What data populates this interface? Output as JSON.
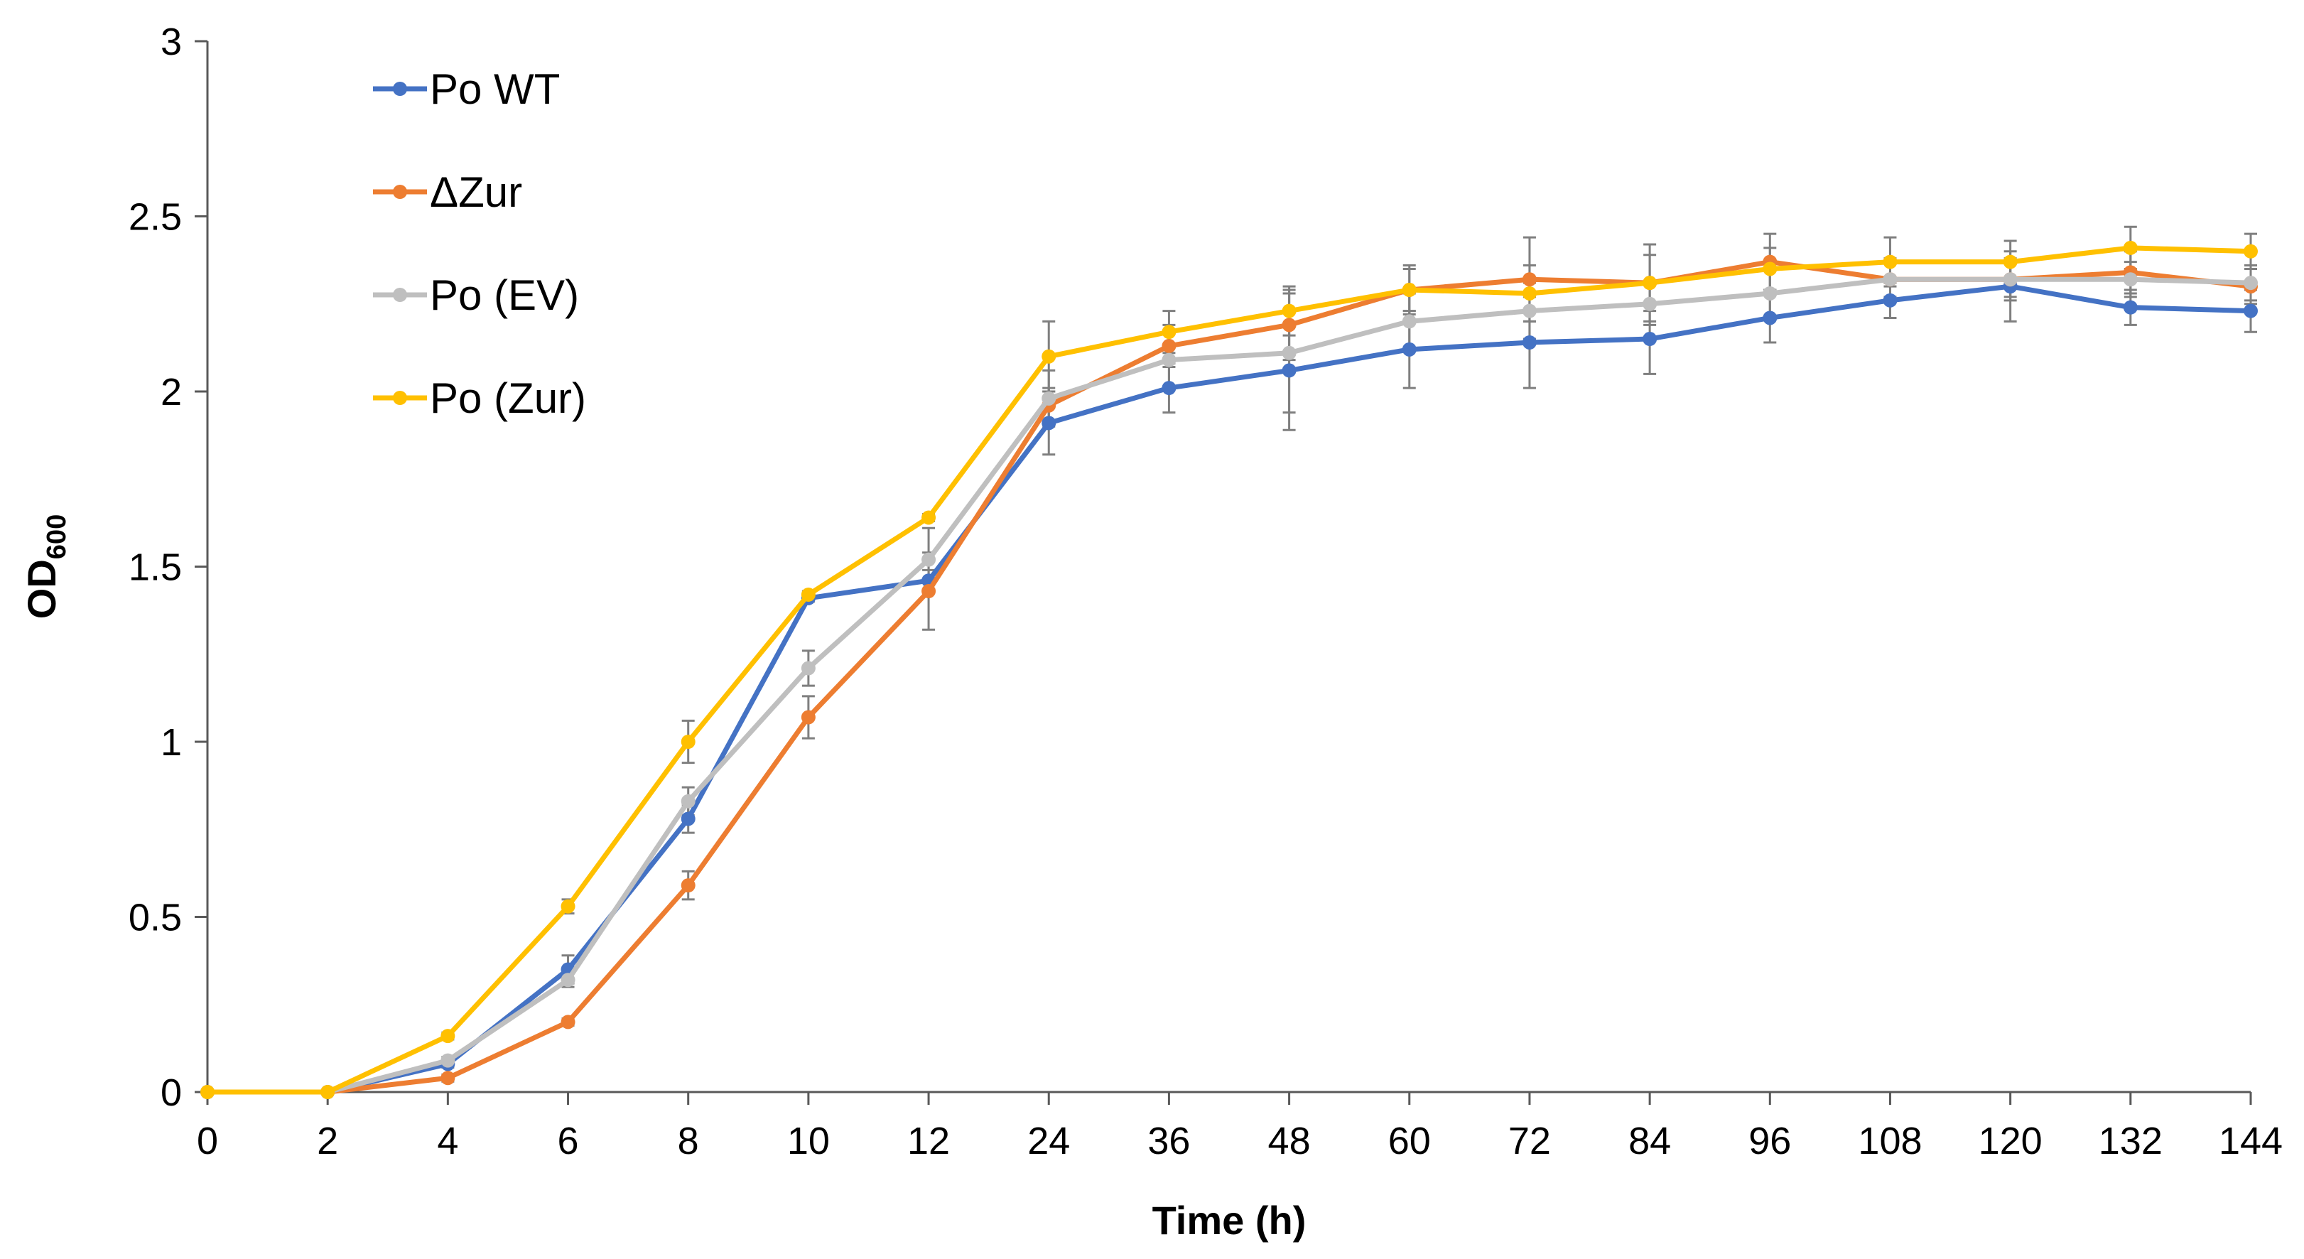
{
  "chart_data": {
    "type": "line",
    "title": "",
    "xlabel": "Time (h)",
    "ylabel": {
      "main": "OD",
      "sub": "600"
    },
    "categories": [
      "0",
      "2",
      "4",
      "6",
      "8",
      "10",
      "12",
      "24",
      "36",
      "48",
      "60",
      "72",
      "84",
      "96",
      "108",
      "120",
      "132",
      "144"
    ],
    "ylim": [
      0,
      3
    ],
    "yticks": [
      "0",
      "0.5",
      "1",
      "1.5",
      "2",
      "2.5",
      "3"
    ],
    "legend_position": "top-left",
    "series": [
      {
        "name": "Po WT",
        "color": "#4472C4",
        "values": [
          0,
          0,
          0.08,
          0.35,
          0.78,
          1.41,
          1.46,
          1.91,
          2.01,
          2.06,
          2.12,
          2.14,
          2.15,
          2.21,
          2.26,
          2.3,
          2.24,
          2.23
        ],
        "errors": [
          0,
          0,
          0.01,
          0.04,
          0.04,
          0.01,
          0.03,
          0.09,
          0.07,
          0.17,
          0.11,
          0.13,
          0.1,
          0.07,
          0.05,
          0.1,
          0.05,
          0.06
        ]
      },
      {
        "name": "ΔZur",
        "color": "#ED7D31",
        "values": [
          0,
          0,
          0.04,
          0.2,
          0.59,
          1.07,
          1.43,
          1.96,
          2.13,
          2.19,
          2.29,
          2.32,
          2.31,
          2.37,
          2.32,
          2.32,
          2.34,
          2.3
        ],
        "errors": [
          0,
          0,
          0.01,
          0.01,
          0.04,
          0.06,
          0.11,
          0.05,
          0.06,
          0.1,
          0.07,
          0.12,
          0.11,
          0.08,
          0.05,
          0.05,
          0.06,
          0.05
        ]
      },
      {
        "name": "Po (EV)",
        "color": "#BFBFBF",
        "values": [
          0,
          0,
          0.09,
          0.32,
          0.83,
          1.21,
          1.52,
          1.98,
          2.09,
          2.11,
          2.2,
          2.23,
          2.25,
          2.28,
          2.32,
          2.32,
          2.32,
          2.31
        ],
        "errors": [
          0,
          0,
          0.01,
          0.02,
          0.04,
          0.05,
          0.09,
          0.08,
          0.08,
          0.17,
          0.08,
          0.08,
          0.06,
          0.07,
          0.06,
          0.06,
          0.05,
          0.05
        ]
      },
      {
        "name": "Po (Zur)",
        "color": "#FFC000",
        "values": [
          0,
          0,
          0.16,
          0.53,
          1.0,
          1.42,
          1.64,
          2.1,
          2.17,
          2.23,
          2.29,
          2.28,
          2.31,
          2.35,
          2.37,
          2.37,
          2.41,
          2.4
        ],
        "errors": [
          0,
          0,
          0.01,
          0.02,
          0.06,
          0.01,
          0.01,
          0.1,
          0.06,
          0.07,
          0.06,
          0.08,
          0.08,
          0.06,
          0.07,
          0.06,
          0.06,
          0.05
        ]
      }
    ]
  }
}
